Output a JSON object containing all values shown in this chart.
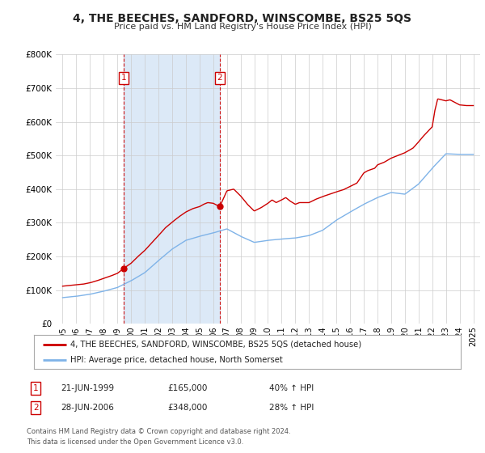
{
  "title": "4, THE BEECHES, SANDFORD, WINSCOMBE, BS25 5QS",
  "subtitle": "Price paid vs. HM Land Registry's House Price Index (HPI)",
  "xlim": [
    1994.5,
    2025.5
  ],
  "ylim": [
    0,
    800000
  ],
  "yticks": [
    0,
    100000,
    200000,
    300000,
    400000,
    500000,
    600000,
    700000,
    800000
  ],
  "ytick_labels": [
    "£0",
    "£100K",
    "£200K",
    "£300K",
    "£400K",
    "£500K",
    "£600K",
    "£700K",
    "£800K"
  ],
  "xticks": [
    1995,
    1996,
    1997,
    1998,
    1999,
    2000,
    2001,
    2002,
    2003,
    2004,
    2005,
    2006,
    2007,
    2008,
    2009,
    2010,
    2011,
    2012,
    2013,
    2014,
    2015,
    2016,
    2017,
    2018,
    2019,
    2020,
    2021,
    2022,
    2023,
    2024,
    2025
  ],
  "hpi_color": "#7fb3e8",
  "price_color": "#cc0000",
  "shade_color": "#dce9f7",
  "transaction1": {
    "date_x": 1999.47,
    "price": 165000,
    "label": "1",
    "date_str": "21-JUN-1999",
    "pct": "40% ↑ HPI"
  },
  "transaction2": {
    "date_x": 2006.48,
    "price": 348000,
    "label": "2",
    "date_str": "28-JUN-2006",
    "pct": "28% ↑ HPI"
  },
  "legend_property": "4, THE BEECHES, SANDFORD, WINSCOMBE, BS25 5QS (detached house)",
  "legend_hpi": "HPI: Average price, detached house, North Somerset",
  "table_row1": [
    "1",
    "21-JUN-1999",
    "£165,000",
    "40% ↑ HPI"
  ],
  "table_row2": [
    "2",
    "28-JUN-2006",
    "£348,000",
    "28% ↑ HPI"
  ],
  "footnote": "Contains HM Land Registry data © Crown copyright and database right 2024.\nThis data is licensed under the Open Government Licence v3.0.",
  "background_color": "#ffffff",
  "grid_color": "#cccccc"
}
